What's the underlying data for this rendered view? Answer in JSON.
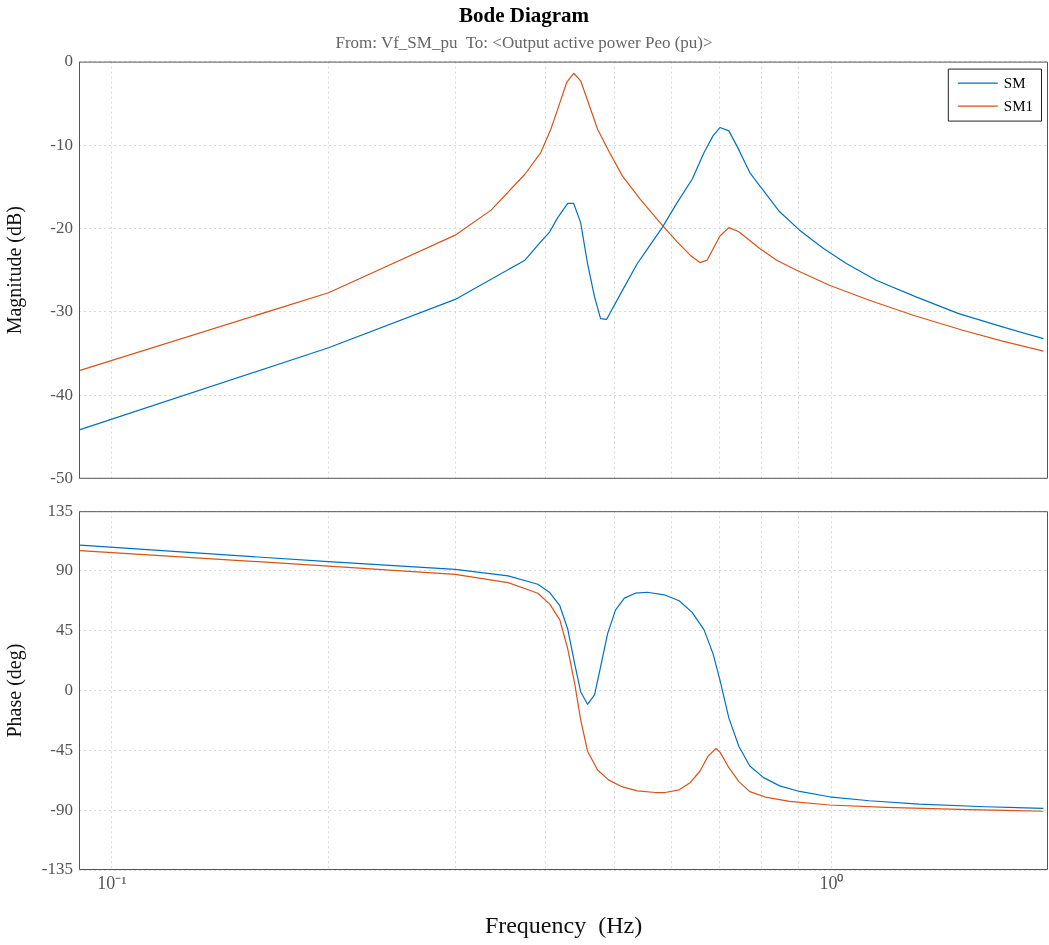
{
  "chart_data": [
    {
      "type": "line",
      "title": "Bode Diagram",
      "subtitle": "From: Vf_SM_pu  To: <Output active power Peo (pu)>",
      "ylabel": "Magnitude (dB)",
      "log": "x",
      "xlim": [
        0.09,
        2
      ],
      "ylim": [
        -50,
        0
      ],
      "yticks": [
        -50,
        -40,
        -30,
        -20,
        -10,
        0
      ],
      "xticks": [
        {
          "value": 0.1,
          "label": null
        },
        {
          "value": 0.2,
          "label": null
        },
        {
          "value": 0.3,
          "label": null
        },
        {
          "value": 0.4,
          "label": null
        },
        {
          "value": 0.5,
          "label": null
        },
        {
          "value": 0.6,
          "label": null
        },
        {
          "value": 0.7,
          "label": null
        },
        {
          "value": 0.8,
          "label": null
        },
        {
          "value": 0.9,
          "label": null
        },
        {
          "value": 1,
          "label": null
        }
      ],
      "tick_labels": "y",
      "grid": true,
      "legend": "top right",
      "series": [
        {
          "name": "SM",
          "color": "#0072bd",
          "x": [
            0.0903,
            0.2,
            0.3,
            0.375,
            0.3908,
            0.406,
            0.4165,
            0.43,
            0.4383,
            0.4482,
            0.4582,
            0.4686,
            0.4777,
            0.4869,
            0.5155,
            0.5374,
            0.5818,
            0.6104,
            0.6404,
            0.6653,
            0.6846,
            0.7,
            0.7203,
            0.7389,
            0.7701,
            0.805,
            0.8473,
            0.9031,
            0.975,
            1.049,
            1.154,
            1.311,
            1.503,
            1.729,
            1.971
          ],
          "values": [
            -44.1,
            -34.3,
            -28.5,
            -23.8,
            -22.0,
            -20.4,
            -18.7,
            -17.0,
            -17.0,
            -19.3,
            -24.2,
            -28.2,
            -30.8,
            -30.9,
            -27.0,
            -24.2,
            -19.9,
            -16.9,
            -14.1,
            -10.9,
            -8.9,
            -7.9,
            -8.3,
            -10.1,
            -13.3,
            -15.5,
            -18.0,
            -20.2,
            -22.4,
            -24.2,
            -26.2,
            -28.2,
            -30.2,
            -31.8,
            -33.2
          ]
        },
        {
          "name": "SM1",
          "color": "#d95319",
          "x": [
            0.0903,
            0.2,
            0.3,
            0.3365,
            0.375,
            0.3945,
            0.4074,
            0.4165,
            0.4286,
            0.4383,
            0.4482,
            0.4732,
            0.4916,
            0.5122,
            0.5425,
            0.5818,
            0.6104,
            0.6363,
            0.6568,
            0.6717,
            0.7,
            0.7203,
            0.7436,
            0.7949,
            0.8393,
            0.8945,
            0.9936,
            1.129,
            1.299,
            1.522,
            1.729,
            1.971
          ],
          "values": [
            -37.0,
            -27.7,
            -20.8,
            -17.8,
            -13.5,
            -10.9,
            -8.1,
            -5.7,
            -2.5,
            -1.4,
            -2.3,
            -8.1,
            -10.9,
            -13.7,
            -16.5,
            -19.6,
            -21.6,
            -23.2,
            -24.1,
            -23.8,
            -20.9,
            -19.9,
            -20.4,
            -22.4,
            -23.8,
            -25.0,
            -26.8,
            -28.6,
            -30.4,
            -32.2,
            -33.5,
            -34.7
          ]
        }
      ]
    },
    {
      "type": "line",
      "xlabel": "Frequency  (Hz)",
      "ylabel": "Phase (deg)",
      "log": "x",
      "xlim": [
        0.09,
        2
      ],
      "ylim": [
        -135,
        135
      ],
      "yticks": [
        -135,
        -90,
        -45,
        0,
        45,
        90,
        135
      ],
      "xticks": [
        {
          "value": 0.1,
          "label": "10⁻¹"
        },
        {
          "value": 0.2,
          "label": null
        },
        {
          "value": 0.3,
          "label": null
        },
        {
          "value": 0.4,
          "label": null
        },
        {
          "value": 0.5,
          "label": null
        },
        {
          "value": 0.6,
          "label": null
        },
        {
          "value": 0.7,
          "label": null
        },
        {
          "value": 0.8,
          "label": null
        },
        {
          "value": 0.9,
          "label": null
        },
        {
          "value": 1,
          "label": "10⁰"
        }
      ],
      "grid": true,
      "series": [
        {
          "color": "#0072bd",
          "x": [
            0.0903,
            0.2,
            0.3,
            0.3553,
            0.3908,
            0.406,
            0.4193,
            0.43,
            0.4397,
            0.4482,
            0.4582,
            0.4686,
            0.4777,
            0.4885,
            0.501,
            0.5155,
            0.5339,
            0.5546,
            0.5855,
            0.6143,
            0.6404,
            0.6653,
            0.6846,
            0.7,
            0.7203,
            0.7436,
            0.7701,
            0.805,
            0.8473,
            0.9031,
            0.9936,
            1.129,
            1.324,
            1.638,
            1.971
          ],
          "values": [
            109.4,
            97.0,
            91.2,
            86.3,
            80.0,
            73.8,
            63.9,
            46.4,
            20.3,
            -0.8,
            -10.3,
            -3.3,
            17.8,
            42.7,
            60.6,
            69.6,
            73.3,
            74.0,
            72.1,
            67.6,
            58.9,
            45.7,
            27.8,
            7.9,
            -20.7,
            -41.9,
            -56.8,
            -65.5,
            -71.7,
            -75.9,
            -79.9,
            -82.9,
            -85.4,
            -87.4,
            -88.6
          ]
        },
        {
          "color": "#d95319",
          "x": [
            0.0903,
            0.2,
            0.3,
            0.3553,
            0.3908,
            0.406,
            0.4193,
            0.43,
            0.4397,
            0.4482,
            0.4582,
            0.4732,
            0.49,
            0.5122,
            0.5374,
            0.569,
            0.5875,
            0.6143,
            0.6363,
            0.6568,
            0.6738,
            0.6912,
            0.7,
            0.7203,
            0.7436,
            0.7701,
            0.8129,
            0.8747,
            0.9936,
            1.191,
            1.552,
            1.971
          ],
          "values": [
            105.4,
            93.7,
            87.5,
            81.3,
            73.3,
            65.1,
            53.2,
            31.5,
            5.4,
            -21.9,
            -45.6,
            -59.8,
            -67.2,
            -72.5,
            -75.4,
            -76.7,
            -76.7,
            -74.7,
            -69.3,
            -60.5,
            -49.3,
            -43.6,
            -46.3,
            -58.0,
            -68.5,
            -76.0,
            -80.4,
            -83.4,
            -86.1,
            -87.9,
            -89.6,
            -90.8
          ]
        }
      ]
    }
  ]
}
